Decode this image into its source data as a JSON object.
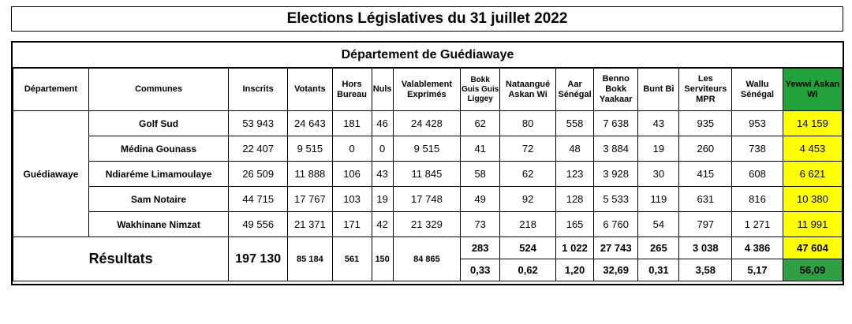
{
  "title": "Elections Législatives du 31 juillet 2022",
  "subtitle": "Département de Guédiawaye",
  "headers": {
    "departement": "Département",
    "communes": "Communes",
    "inscrits": "Inscrits",
    "votants": "Votants",
    "hors_bureau": "Hors Bureau",
    "nuls": "Nuls",
    "valablement": "Valablement Exprimés",
    "bokk_guis_guis": "Bokk Guis Guis Liggey",
    "natangue": "Nataangué Askan Wi",
    "aar": "Aar Sénégal",
    "benno": "Benno Bokk Yaakaar",
    "bunt_bi": "Bunt Bi",
    "serviteurs": "Les Serviteurs MPR",
    "wallu": "Wallu Sénégal",
    "yewwi": "Yewwi Askan Wi"
  },
  "departement_name": "Guédiawaye",
  "rows": [
    {
      "commune": "Golf Sud",
      "inscrits": "53 943",
      "votants": "24 643",
      "hors": "181",
      "nuls": "46",
      "valables": "24 428",
      "bgg": "62",
      "nat": "80",
      "aar": "558",
      "bby": "7 638",
      "bunt": "43",
      "serv": "935",
      "wallu": "953",
      "yewwi": "14 159"
    },
    {
      "commune": "Médina Gounass",
      "inscrits": "22 407",
      "votants": "9 515",
      "hors": "0",
      "nuls": "0",
      "valables": "9 515",
      "bgg": "41",
      "nat": "72",
      "aar": "48",
      "bby": "3 884",
      "bunt": "19",
      "serv": "260",
      "wallu": "738",
      "yewwi": "4 453"
    },
    {
      "commune": "Ndiaréme Limamoulaye",
      "inscrits": "26 509",
      "votants": "11 888",
      "hors": "106",
      "nuls": "43",
      "valables": "11 845",
      "bgg": "58",
      "nat": "62",
      "aar": "123",
      "bby": "3 928",
      "bunt": "30",
      "serv": "415",
      "wallu": "608",
      "yewwi": "6 621"
    },
    {
      "commune": "Sam Notaire",
      "inscrits": "44 715",
      "votants": "17 767",
      "hors": "103",
      "nuls": "19",
      "valables": "17 748",
      "bgg": "49",
      "nat": "92",
      "aar": "128",
      "bby": "5 533",
      "bunt": "119",
      "serv": "631",
      "wallu": "816",
      "yewwi": "10 380"
    },
    {
      "commune": "Wakhinane Nimzat",
      "inscrits": "49 556",
      "votants": "21 371",
      "hors": "171",
      "nuls": "42",
      "valables": "21 329",
      "bgg": "73",
      "nat": "218",
      "aar": "165",
      "bby": "6 760",
      "bunt": "54",
      "serv": "797",
      "wallu": "1 271",
      "yewwi": "11 991"
    }
  ],
  "results": {
    "label": "Résultats",
    "inscrits": "197 130",
    "votants": "85 184",
    "hors": "561",
    "nuls": "150",
    "valables": "84 865",
    "totals": {
      "bgg": "283",
      "nat": "524",
      "aar": "1 022",
      "bby": "27 743",
      "bunt": "265",
      "serv": "3 038",
      "wallu": "4 386",
      "yewwi": "47 604"
    },
    "percents": {
      "bgg": "0,33",
      "nat": "0,62",
      "aar": "1,20",
      "bby": "32,69",
      "bunt": "0,31",
      "serv": "3,58",
      "wallu": "5,17",
      "yewwi": "56,09"
    }
  },
  "colors": {
    "highlight_yellow": "#ffff00",
    "highlight_green": "#2ea043"
  }
}
